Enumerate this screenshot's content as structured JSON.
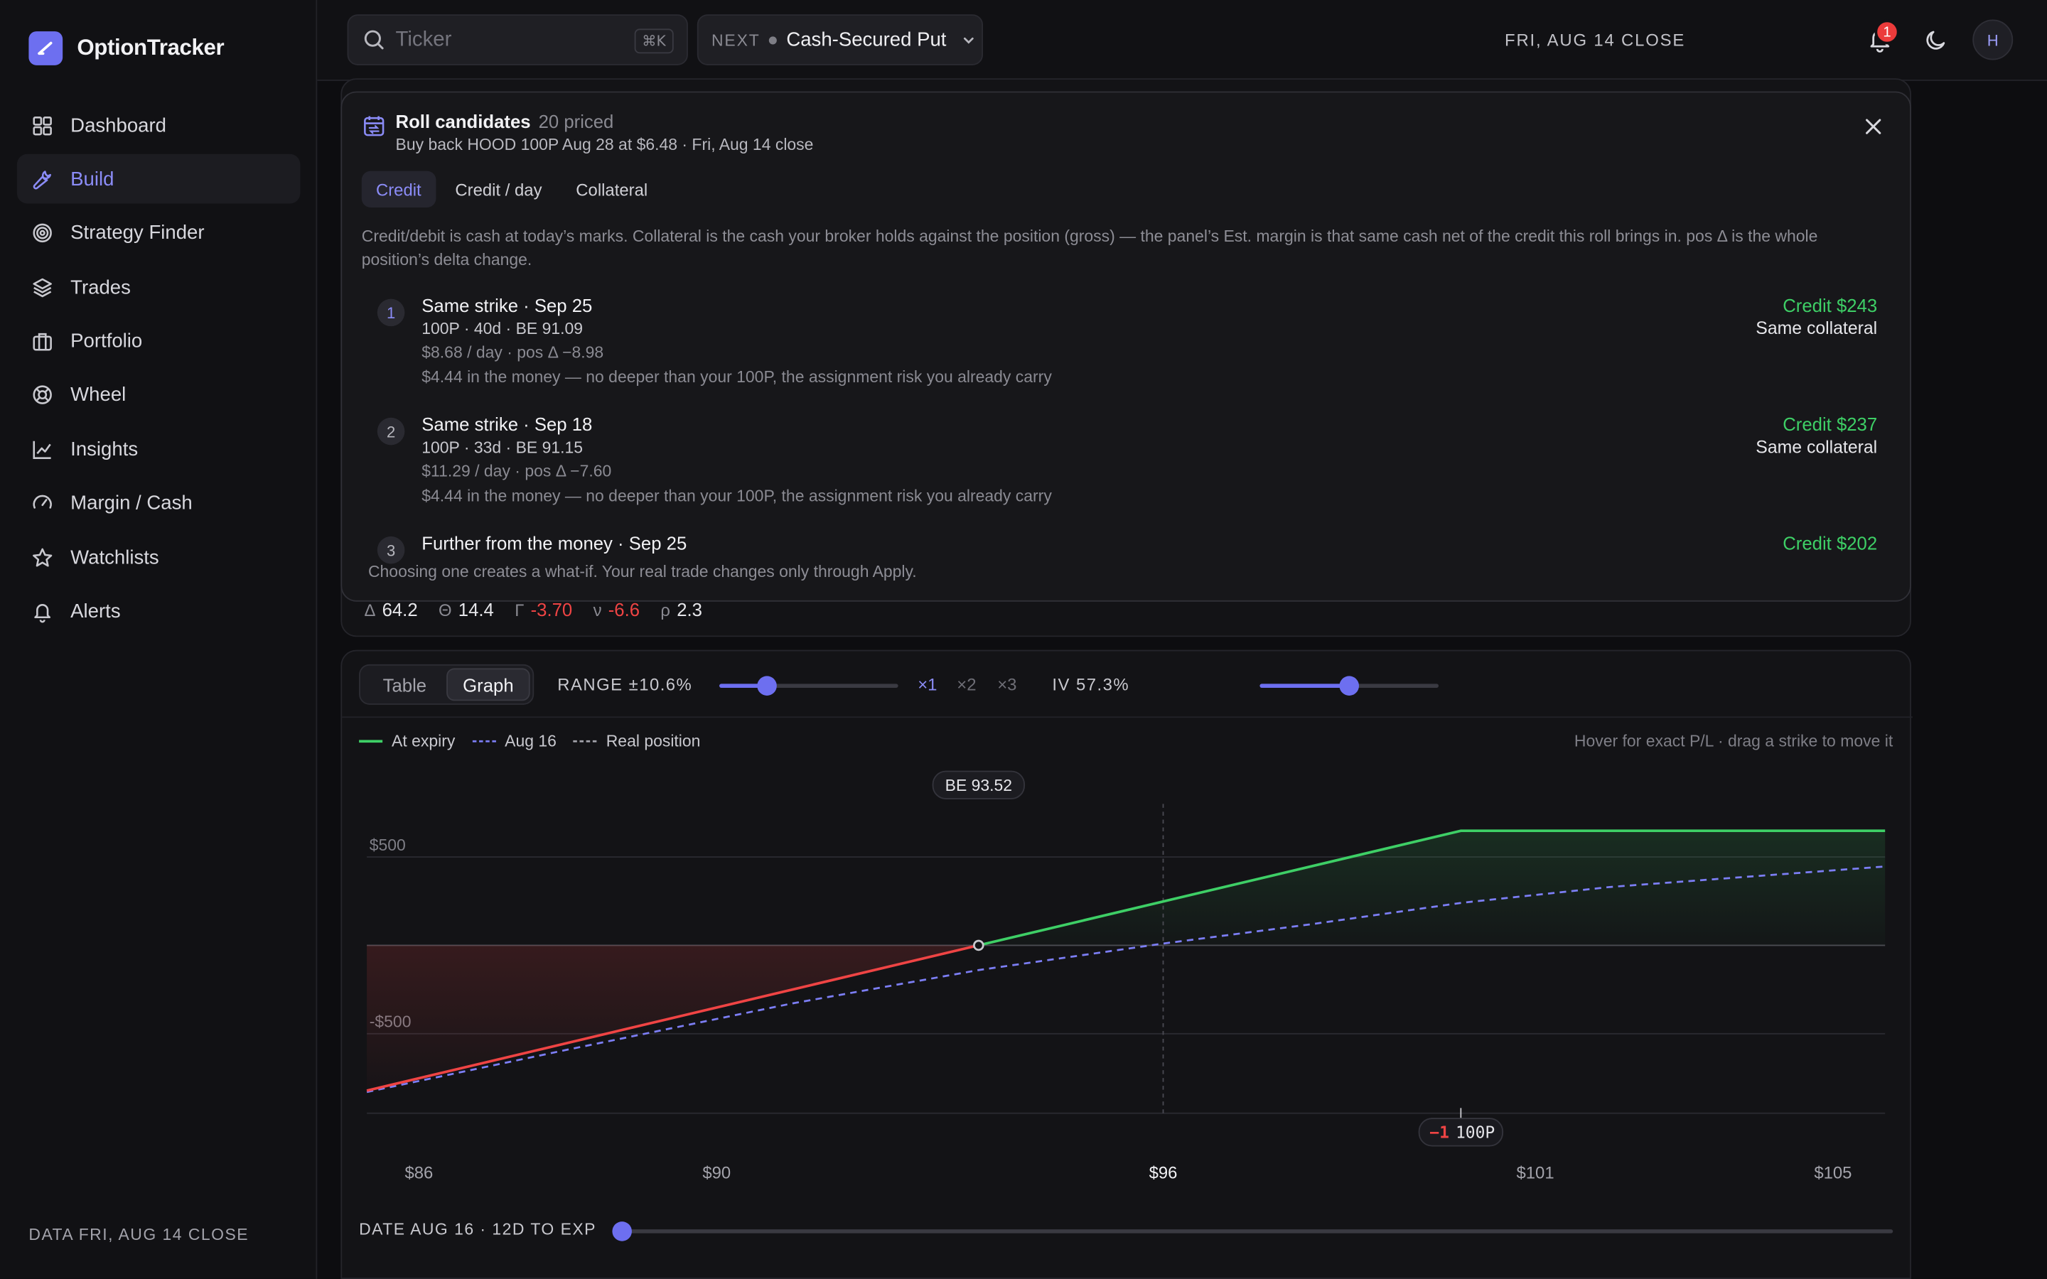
{
  "app": {
    "brand": "OptionTracker",
    "data_label": "DATA FRI, AUG 14 CLOSE"
  },
  "sidebar": {
    "items": [
      {
        "label": "Dashboard",
        "icon": "dashboard-icon"
      },
      {
        "label": "Build",
        "icon": "wrench-icon",
        "active": true
      },
      {
        "label": "Strategy Finder",
        "icon": "target-icon"
      },
      {
        "label": "Trades",
        "icon": "layers-icon"
      },
      {
        "label": "Portfolio",
        "icon": "briefcase-icon"
      },
      {
        "label": "Wheel",
        "icon": "lifebuoy-icon"
      },
      {
        "label": "Insights",
        "icon": "line-chart-icon"
      },
      {
        "label": "Margin / Cash",
        "icon": "gauge-icon"
      },
      {
        "label": "Watchlists",
        "icon": "star-icon"
      },
      {
        "label": "Alerts",
        "icon": "bell-icon"
      }
    ]
  },
  "topbar": {
    "search_placeholder": "Ticker",
    "search_shortcut": "⌘K",
    "next_label": "NEXT",
    "next_value": "Cash-Secured Put",
    "close_label": "FRI, AUG 14 CLOSE",
    "notifications": "1",
    "avatar": "H"
  },
  "greeks": [
    {
      "sym": "Δ",
      "value": "64.2",
      "negative": false
    },
    {
      "sym": "Θ",
      "value": "14.4",
      "negative": false
    },
    {
      "sym": "Γ",
      "value": "-3.70",
      "negative": true
    },
    {
      "sym": "ν",
      "value": "-6.6",
      "negative": true
    },
    {
      "sym": "ρ",
      "value": "2.3",
      "negative": false
    }
  ],
  "roll": {
    "title": "Roll candidates",
    "count": "20 priced",
    "subtitle": "Buy back HOOD 100P Aug 28 at $6.48 · Fri, Aug 14 close",
    "tabs": [
      "Credit",
      "Credit / day",
      "Collateral"
    ],
    "active_tab": 0,
    "note": "Credit/debit is cash at today’s marks. Collateral is the cash your broker holds against the position (gross) — the panel’s Est. margin is that same cash net of the credit this roll brings in. pos Δ is the whole position’s delta change.",
    "candidates": [
      {
        "num": "1",
        "title": "Same strike · Sep 25",
        "line2": "100P · 40d · BE 91.09",
        "line3": "$8.68 / day · pos Δ −8.98",
        "line4": "$4.44 in the money — no deeper than your 100P, the assignment risk you already carry",
        "credit": "Credit $243",
        "collateral": "Same collateral"
      },
      {
        "num": "2",
        "title": "Same strike · Sep 18",
        "line2": "100P · 33d · BE 91.15",
        "line3": "$11.29 / day · pos Δ −7.60",
        "line4": "$4.44 in the money — no deeper than your 100P, the assignment risk you already carry",
        "credit": "Credit $237",
        "collateral": "Same collateral"
      },
      {
        "num": "3",
        "title": "Further from the money · Sep 25",
        "line2": "",
        "line3": "",
        "line4": "",
        "credit": "Credit $202",
        "collateral": ""
      }
    ],
    "footer": "Choosing one creates a what-if. Your real trade changes only through Apply."
  },
  "graph": {
    "view_tabs": [
      "Table",
      "Graph"
    ],
    "active_view": 1,
    "range_label": "RANGE ±10.6%",
    "range_fraction": 0.27,
    "multipliers": [
      "×1",
      "×2",
      "×3"
    ],
    "active_multiplier": 0,
    "iv_label": "IV 57.3%",
    "iv_fraction": 0.5,
    "legend": [
      "At expiry",
      "Aug 16",
      "Real position"
    ],
    "hint": "Hover for exact P/L · drag a strike to move it",
    "date_label": "DATE AUG 16 · 12D TO EXP",
    "date_fraction": 0.0
  },
  "chart_data": {
    "type": "line",
    "x_ticks": [
      "$86",
      "$90",
      "$96",
      "$101",
      "$105"
    ],
    "x_tick_values": [
      86,
      90,
      96,
      101,
      105
    ],
    "current_price": 96,
    "xlim": [
      85.3,
      105.7
    ],
    "y_ticks": [
      "$500",
      "-$500"
    ],
    "y_tick_values": [
      500,
      -500
    ],
    "ylim": [
      -950,
      800
    ],
    "breakeven_label": "BE 93.52",
    "breakeven": 93.52,
    "strike_label": "100P",
    "strike_qty": "−1",
    "strike": 100,
    "series": [
      {
        "name": "At expiry",
        "x": [
          85.3,
          93.52,
          100,
          105.7
        ],
        "y": [
          -822,
          0,
          648,
          648
        ]
      },
      {
        "name": "Aug 16",
        "x": [
          85.3,
          88,
          91,
          93.52,
          96,
          98,
          100,
          102,
          105.7
        ],
        "y": [
          -830,
          -590,
          -330,
          -140,
          10,
          120,
          240,
          330,
          446
        ]
      }
    ],
    "colors": {
      "profit": "#3ecf66",
      "loss": "#ef4444",
      "aug16": "#7c7ef5",
      "grid": "#2a2a30"
    }
  }
}
